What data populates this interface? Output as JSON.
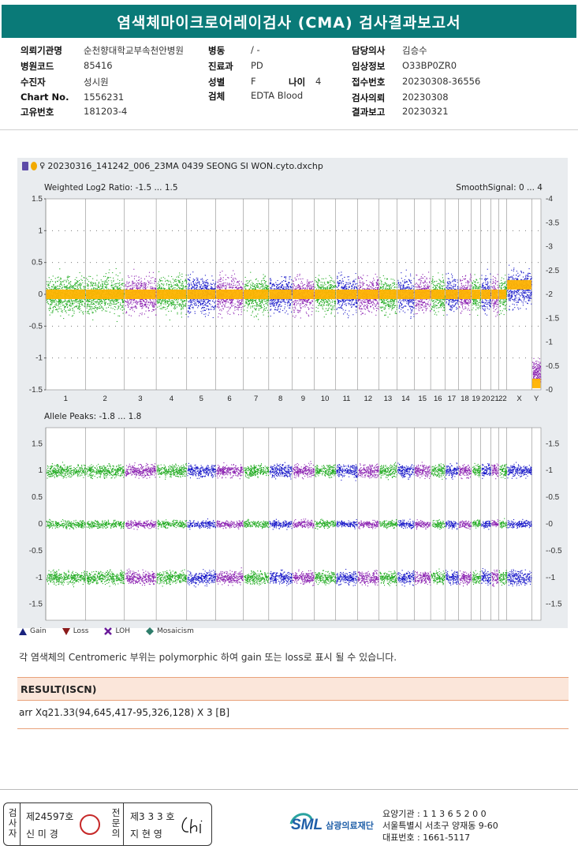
{
  "title": "염색체마이크로어레이검사 (CMA) 검사결과보고서",
  "info": {
    "col1": [
      {
        "label": "의뢰기관명",
        "value": "순천향대학교부속천안병원"
      },
      {
        "label": "병원코드",
        "value": "85416"
      },
      {
        "label": "수진자",
        "value": "성시원"
      },
      {
        "label": "Chart No.",
        "value": "1556231"
      },
      {
        "label": "고유번호",
        "value": "181203-4"
      }
    ],
    "col2": [
      {
        "label": "병동",
        "value": "/ -"
      },
      {
        "label": "진료과",
        "value": "PD"
      },
      {
        "label": "성별",
        "value": "F"
      },
      {
        "label": "검체",
        "value": "EDTA Blood"
      }
    ],
    "age": {
      "label": "나이",
      "value": "4"
    },
    "col3": [
      {
        "label": "담당의사",
        "value": "김승수"
      },
      {
        "label": "임상정보",
        "value": "O33BP0ZR0"
      },
      {
        "label": "접수번호",
        "value": "20230308-36556"
      },
      {
        "label": "검사의뢰",
        "value": "20230308"
      },
      {
        "label": "결과보고",
        "value": "20230321"
      }
    ]
  },
  "plot": {
    "file_name": "20230316_141242_006_23MA 0439 SEONG SI WON.cyto.dxchp",
    "panel1_label": "Weighted Log2 Ratio: -1.5 ... 1.5",
    "panel1_right_label": "SmoothSignal: 0 ... 4",
    "panel1_left_ticks": [
      "1.5",
      "1",
      "0.5",
      "0",
      "-0.5",
      "-1",
      "-1.5"
    ],
    "panel1_right_ticks": [
      "4",
      "3.5",
      "3",
      "2.5",
      "2",
      "1.5",
      "1",
      "0.5",
      "0"
    ],
    "panel2_label": "Allele Peaks: -1.8 ... 1.8",
    "panel2_left_ticks": [
      "1.5",
      "1",
      "0.5",
      "0",
      "-0.5",
      "-1",
      "-1.5"
    ],
    "panel2_right_ticks": [
      "1.5",
      "1",
      "0.5",
      "0",
      "-0.5",
      "-1",
      "-1.5"
    ],
    "chromosomes": [
      "1",
      "2",
      "3",
      "4",
      "5",
      "6",
      "7",
      "8",
      "9",
      "10",
      "11",
      "12",
      "13",
      "14",
      "15",
      "16",
      "17",
      "18",
      "19",
      "20",
      "21",
      "22",
      "X",
      "Y"
    ]
  },
  "legend": [
    {
      "label": "Gain",
      "color": "#1a237e"
    },
    {
      "label": "Loss",
      "color": "#8b1a1a"
    },
    {
      "label": "LOH",
      "color": "#6a1b9a"
    },
    {
      "label": "Mosaicism",
      "color": "#2e7d6b"
    }
  ],
  "note": "각 염색체의 Centromeric 부위는 polymorphic 하여 gain 또는 loss로 표시 될 수 있습니다.",
  "result": {
    "header": "RESULT(ISCN)",
    "text": "arr Xq21.33(94,645,417-95,326,128) X 3 [B]"
  },
  "signers": {
    "tester_label": "검사자",
    "tester_no": "제24597호",
    "tester_name": "신 미 경",
    "specialist_label": "전문의",
    "specialist_no": "제3 3 3 호",
    "specialist_name": "지 현 영"
  },
  "institution": {
    "logo": "SML",
    "name": "삼광의료재단",
    "code_line": "요양기관 : 1 1 3 6 5 2 0 0",
    "address_line": "서울특별시 서초구 양재동 9-60",
    "phone_line": "대표번호 : 1661-5117"
  },
  "colors": {
    "header": "#0a7a78",
    "green": "#1faa1f",
    "blue": "#1616c8",
    "purple": "#8a1fb0",
    "orange": "#ffb300"
  }
}
